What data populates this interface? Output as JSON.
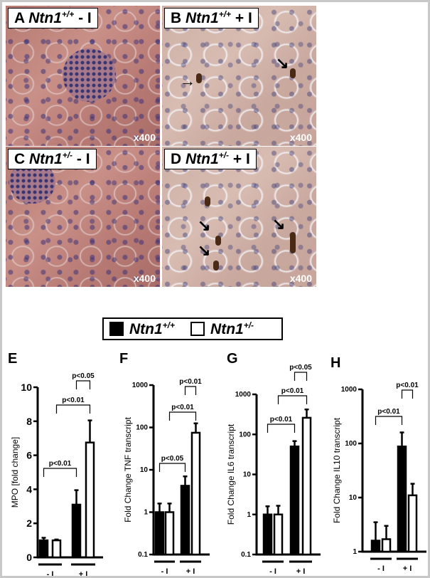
{
  "micrographs": [
    {
      "letter": "A",
      "gene": "Ntn1",
      "genotype": "+/+",
      "treatment": "- I",
      "magnification": "x400"
    },
    {
      "letter": "B",
      "gene": "Ntn1",
      "genotype": "+/+",
      "treatment": "+ I",
      "magnification": "x400"
    },
    {
      "letter": "C",
      "gene": "Ntn1",
      "genotype": "+/-",
      "treatment": "- I",
      "magnification": "x400"
    },
    {
      "letter": "D",
      "gene": "Ntn1",
      "genotype": "+/-",
      "treatment": "+ I",
      "magnification": "x400"
    }
  ],
  "legend": [
    {
      "gene": "Ntn1",
      "genotype": "+/+",
      "color": "#000000"
    },
    {
      "gene": "Ntn1",
      "genotype": "+/-",
      "color": "#ffffff"
    }
  ],
  "chart_data": [
    {
      "panel": "E",
      "type": "bar",
      "scale": "linear",
      "ylabel": "MPO [fold change]",
      "ylim": [
        0,
        10
      ],
      "yticks": [
        "0",
        "2",
        "4",
        "6",
        "8",
        "10"
      ],
      "categories": [
        "- I",
        "+ I"
      ],
      "series": [
        {
          "name": "Ntn1+/+",
          "values": [
            1.0,
            3.1
          ],
          "error": [
            0.15,
            0.85
          ]
        },
        {
          "name": "Ntn1+/-",
          "values": [
            1.0,
            6.75
          ],
          "error": [
            0.05,
            1.3
          ]
        }
      ],
      "annotations": [
        "p<0.01",
        "p<0.01",
        "p<0.05"
      ]
    },
    {
      "panel": "F",
      "type": "bar",
      "scale": "log",
      "ylabel": "Fold Change TNF transcript",
      "ylim": [
        0.1,
        1000
      ],
      "yticks": [
        "0.1",
        "1",
        "10",
        "100",
        "1000"
      ],
      "categories": [
        "- I",
        "+ I"
      ],
      "series": [
        {
          "name": "Ntn1+/+",
          "values": [
            1.0,
            4.2
          ],
          "error_upper": [
            1.6,
            7
          ]
        },
        {
          "name": "Ntn1+/-",
          "values": [
            1.0,
            75
          ],
          "error_upper": [
            1.6,
            125
          ]
        }
      ],
      "annotations": [
        "p<0.05",
        "p<0.01",
        "p<0.01"
      ]
    },
    {
      "panel": "G",
      "type": "bar",
      "scale": "log",
      "ylabel": "Fold Change IL6 transcript",
      "ylim": [
        0.1,
        1000
      ],
      "yticks": [
        "0.1",
        "1",
        "10",
        "100",
        "1000"
      ],
      "categories": [
        "- I",
        "+ I"
      ],
      "series": [
        {
          "name": "Ntn1+/+",
          "values": [
            1.0,
            50
          ],
          "error_upper": [
            1.6,
            68
          ]
        },
        {
          "name": "Ntn1+/-",
          "values": [
            1.0,
            260
          ],
          "error_upper": [
            1.65,
            420
          ]
        }
      ],
      "annotations": [
        "p<0.01",
        "p<0.01",
        "p<0.05"
      ]
    },
    {
      "panel": "H",
      "type": "bar",
      "scale": "log",
      "ylabel": "Fold Change IL10 transcript",
      "ylim": [
        1,
        1000
      ],
      "yticks": [
        "1",
        "10",
        "100",
        "1000"
      ],
      "categories": [
        "- I",
        "+ I"
      ],
      "series": [
        {
          "name": "Ntn1+/+",
          "values": [
            1.6,
            88
          ],
          "error_upper": [
            3.5,
            160
          ]
        },
        {
          "name": "Ntn1+/-",
          "values": [
            1.7,
            11
          ],
          "error_upper": [
            3.0,
            18
          ]
        }
      ],
      "annotations": [
        "p<0.01",
        "p<0.01"
      ]
    }
  ]
}
